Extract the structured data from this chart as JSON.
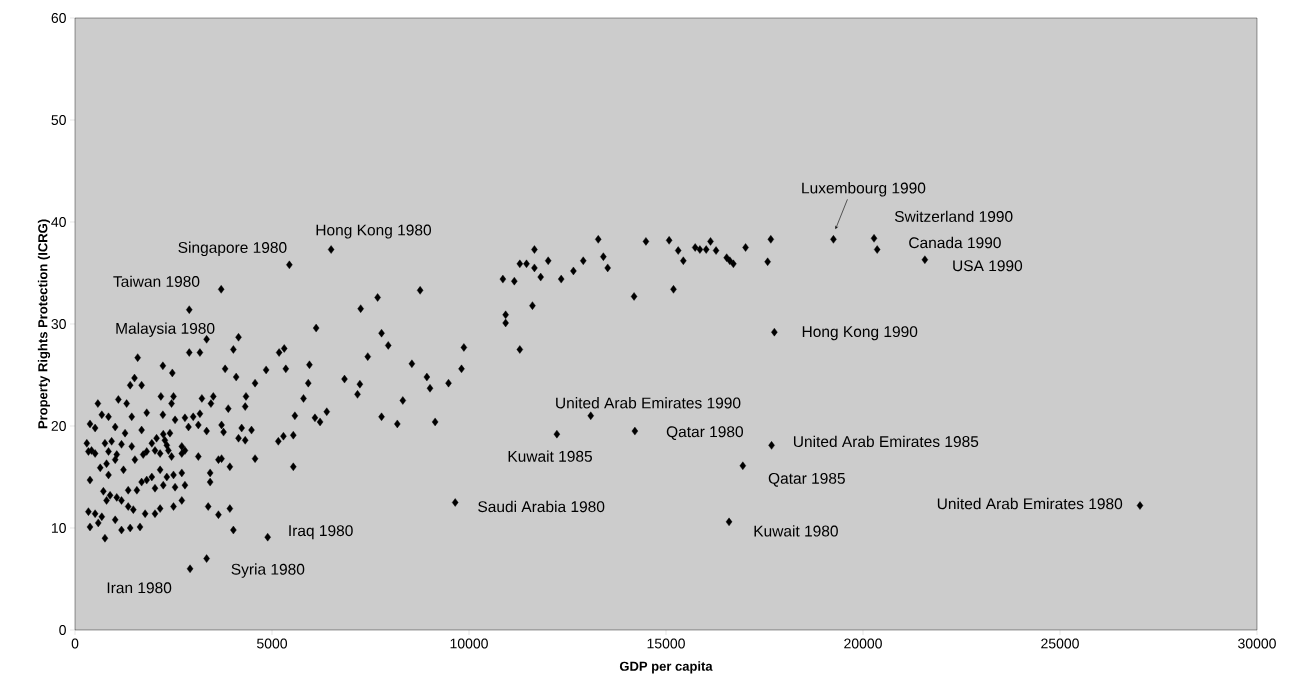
{
  "chart_data": {
    "type": "scatter",
    "xlabel": "GDP per capita",
    "ylabel": "Property Rights Protection (ICRG)",
    "xlim": [
      0,
      30000
    ],
    "ylim": [
      0,
      60
    ],
    "xticks": [
      0,
      5000,
      10000,
      15000,
      20000,
      25000,
      30000
    ],
    "yticks": [
      0,
      10,
      20,
      30,
      40,
      50,
      60
    ],
    "grid": false,
    "marker": "diamond",
    "series": [
      {
        "color": "#000000",
        "x": [
          13280,
          14490,
          15080,
          17660,
          16130,
          11660,
          15310,
          15740,
          15860,
          16020,
          16270,
          17020,
          11290,
          11460,
          11660,
          12010,
          12900,
          13410,
          13520,
          15440,
          16540,
          16620,
          16710,
          17580,
          10860,
          11150,
          11820,
          12340,
          12650,
          8760,
          14190,
          15190,
          11610,
          10930,
          10930,
          11290,
          17750,
          7780,
          7950,
          9870,
          8550,
          8930,
          9010,
          9480,
          9810,
          8320,
          7780,
          8180,
          9140,
          13090,
          12230,
          14210,
          17680,
          9650,
          16950,
          16600,
          19250,
          20280,
          20360,
          21570,
          27030,
          6500,
          5440,
          3710,
          2900,
          7680,
          7250,
          6120,
          3340,
          4150,
          2900,
          3170,
          4020,
          5180,
          5310,
          7430,
          1590,
          2230,
          2470,
          3810,
          4090,
          4850,
          5350,
          5950,
          5920,
          6840,
          7230,
          7170,
          4570,
          1510,
          1690,
          1400,
          1100,
          1310,
          580,
          2180,
          2500,
          2450,
          3220,
          3510,
          3450,
          4340,
          4320,
          3890,
          5800,
          5580,
          6090,
          6220,
          6390,
          850,
          680,
          380,
          510,
          1020,
          1270,
          1440,
          1820,
          2230,
          2540,
          2790,
          3000,
          3170,
          2880,
          3130,
          3340,
          3720,
          3770,
          4230,
          4480,
          1690,
          2240,
          2410,
          2070,
          4150,
          4320,
          5160,
          5290,
          5540,
          300,
          420,
          760,
          930,
          1180,
          1440,
          1950,
          1820,
          2030,
          2280,
          2330,
          2370,
          2710,
          2790,
          340,
          510,
          850,
          1020,
          1060,
          800,
          640,
          1520,
          1730,
          2160,
          2450,
          2710,
          3130,
          3640,
          3720,
          4570,
          1230,
          2160,
          2500,
          2710,
          2330,
          1950,
          3430,
          3430,
          3930,
          5540,
          380,
          850,
          1690,
          1820,
          1570,
          1350,
          2540,
          2790,
          2030,
          2240,
          720,
          890,
          1060,
          1180,
          800,
          1350,
          1480,
          1780,
          2030,
          2160,
          2500,
          2710,
          340,
          510,
          680,
          1020,
          1180,
          380,
          590,
          760,
          1400,
          1650,
          3380,
          3640,
          3930,
          4020,
          4890,
          3340,
          2920
        ],
        "values": [
          38.3,
          38.1,
          38.2,
          38.3,
          38.1,
          37.3,
          37.2,
          37.5,
          37.3,
          37.3,
          37.2,
          37.5,
          35.9,
          35.9,
          35.5,
          36.2,
          36.2,
          36.6,
          35.5,
          36.2,
          36.5,
          36.2,
          35.9,
          36.1,
          34.4,
          34.2,
          34.6,
          34.4,
          35.2,
          33.3,
          32.7,
          33.4,
          31.8,
          30.9,
          30.1,
          27.5,
          29.2,
          29.1,
          27.9,
          27.7,
          26.1,
          24.8,
          23.7,
          24.2,
          25.6,
          22.5,
          20.9,
          20.2,
          20.4,
          21.0,
          19.2,
          19.5,
          18.1,
          12.5,
          16.1,
          10.6,
          38.3,
          38.4,
          37.3,
          36.3,
          12.2,
          37.3,
          35.8,
          33.4,
          31.4,
          32.6,
          31.5,
          29.6,
          28.5,
          28.7,
          27.2,
          27.2,
          27.5,
          27.2,
          27.6,
          26.8,
          26.7,
          25.9,
          25.2,
          25.6,
          24.8,
          25.5,
          25.6,
          26.0,
          24.2,
          24.6,
          24.1,
          23.1,
          24.2,
          24.7,
          24.0,
          24.0,
          22.6,
          22.2,
          22.2,
          22.9,
          22.9,
          22.2,
          22.7,
          22.9,
          22.2,
          22.9,
          21.9,
          21.7,
          22.7,
          21.0,
          20.8,
          20.4,
          21.4,
          20.9,
          21.1,
          20.2,
          19.8,
          19.9,
          19.3,
          20.9,
          21.3,
          21.1,
          20.6,
          20.8,
          20.9,
          21.2,
          19.9,
          20.1,
          19.5,
          20.1,
          19.4,
          19.8,
          19.6,
          19.6,
          19.2,
          19.3,
          18.8,
          18.8,
          18.6,
          18.5,
          19.0,
          19.1,
          18.3,
          17.6,
          18.3,
          18.5,
          18.2,
          18.0,
          18.3,
          17.5,
          17.6,
          18.6,
          18.1,
          17.6,
          18.0,
          17.6,
          17.5,
          17.3,
          17.5,
          16.7,
          17.2,
          16.3,
          15.9,
          16.7,
          17.2,
          17.3,
          17.0,
          17.3,
          17.0,
          16.7,
          16.8,
          16.8,
          15.7,
          15.7,
          15.2,
          15.4,
          15.0,
          15.0,
          15.4,
          14.5,
          16.0,
          16.0,
          14.7,
          15.2,
          14.5,
          14.7,
          13.7,
          13.7,
          14.0,
          14.2,
          13.9,
          14.2,
          13.6,
          13.2,
          13.0,
          12.7,
          12.7,
          12.1,
          11.8,
          11.4,
          11.4,
          11.9,
          12.1,
          12.7,
          11.6,
          11.4,
          11.1,
          10.8,
          9.8,
          10.1,
          10.5,
          9.0,
          10.0,
          10.1,
          12.1,
          11.3,
          11.9,
          9.8,
          9.1,
          7.0,
          6.0
        ]
      }
    ],
    "annotations": [
      {
        "text": "Hong Kong 1980",
        "x": 6500,
        "y": 37.3
      },
      {
        "text": "Singapore 1980",
        "x": 5440,
        "y": 35.8
      },
      {
        "text": "Taiwan 1980",
        "x": 3710,
        "y": 33.4
      },
      {
        "text": "Malaysia 1980",
        "x": 2900,
        "y": 31.4
      },
      {
        "text": "Iran 1980",
        "x": 2920,
        "y": 6.0
      },
      {
        "text": "Syria 1980",
        "x": 3340,
        "y": 7.0
      },
      {
        "text": "Iraq 1980",
        "x": 4890,
        "y": 9.1
      },
      {
        "text": "Saudi Arabia 1980",
        "x": 9650,
        "y": 12.5
      },
      {
        "text": "Kuwait 1985",
        "x": 12230,
        "y": 19.2
      },
      {
        "text": "United Arab Emirates 1990",
        "x": 13090,
        "y": 21.0
      },
      {
        "text": "Qatar 1980",
        "x": 14210,
        "y": 19.5
      },
      {
        "text": "Luxembourg 1990",
        "x": 19250,
        "y": 38.3
      },
      {
        "text": "Switzerland 1990",
        "x": 20280,
        "y": 38.4
      },
      {
        "text": "Canada 1990",
        "x": 20360,
        "y": 37.3
      },
      {
        "text": "USA 1990",
        "x": 21570,
        "y": 36.3
      },
      {
        "text": "Hong Kong 1990",
        "x": 17750,
        "y": 29.2
      },
      {
        "text": "United Arab Emirates 1985",
        "x": 17680,
        "y": 18.1
      },
      {
        "text": "Qatar 1985",
        "x": 16950,
        "y": 16.1
      },
      {
        "text": "Kuwait 1980",
        "x": 16600,
        "y": 10.6
      },
      {
        "text": "United Arab Emirates 1980",
        "x": 27030,
        "y": 12.2
      }
    ]
  }
}
